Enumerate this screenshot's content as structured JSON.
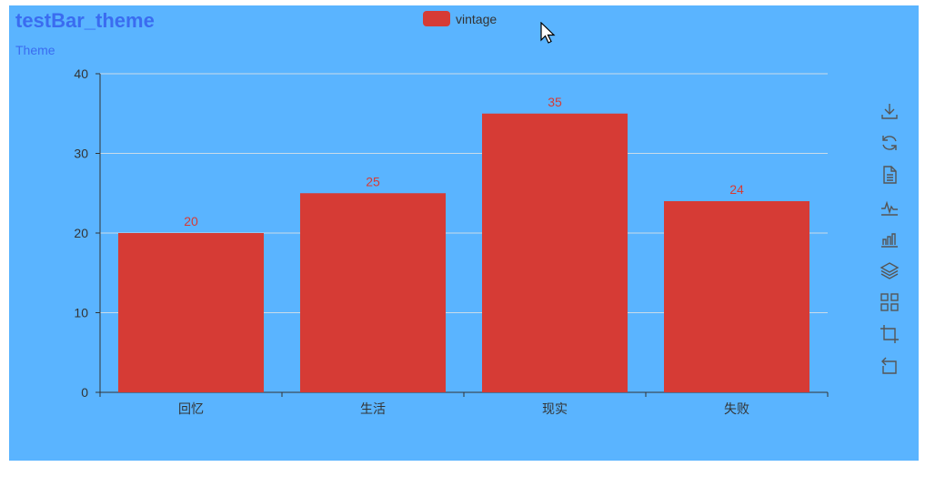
{
  "title": "testBar_theme",
  "subtitle": "Theme",
  "legend": {
    "label": "vintage",
    "color": "#d63b35"
  },
  "background_color": "#5ab4ff",
  "toolbox": [
    "download-icon",
    "refresh-icon",
    "data-view-icon",
    "line-chart-icon",
    "bar-chart-icon",
    "stack-icon",
    "tiled-icon",
    "zoom-icon",
    "zoom-reset-icon"
  ],
  "chart_data": {
    "type": "bar",
    "categories": [
      "回忆",
      "生活",
      "现实",
      "失败"
    ],
    "series": [
      {
        "name": "vintage",
        "values": [
          20,
          25,
          35,
          24
        ],
        "color": "#d63b35"
      }
    ],
    "ylim": [
      0,
      40
    ],
    "yticks": [
      0,
      10,
      20,
      30,
      40
    ],
    "grid": true,
    "legend_position": "top-center",
    "show_data_labels": true
  }
}
